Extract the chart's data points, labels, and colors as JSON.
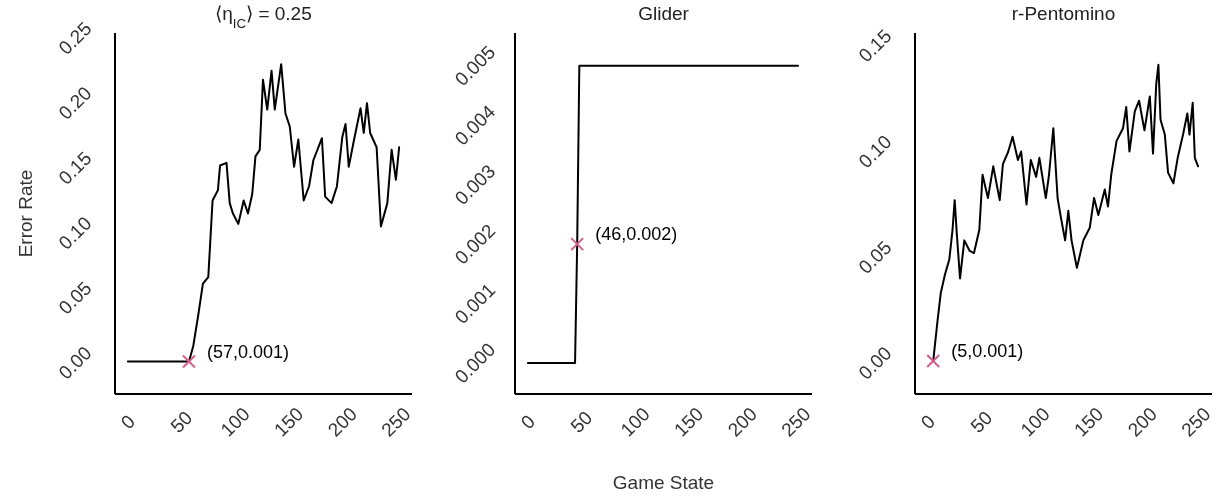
{
  "chart_data": [
    {
      "type": "line",
      "title": "⟨η$_{IC}$⟩ = 0.25",
      "ylabel": "Error Rate",
      "xlim": [
        -12,
        265
      ],
      "xticks": [
        0,
        50,
        100,
        150,
        200,
        250
      ],
      "ylim": [
        -0.024,
        0.254
      ],
      "yticks": [
        {
          "value": 0,
          "label": "0.00"
        },
        {
          "value": 0.05,
          "label": "0.05"
        },
        {
          "value": 0.1,
          "label": "0.10"
        },
        {
          "value": 0.15,
          "label": "0.15"
        },
        {
          "value": 0.2,
          "label": "0.20"
        },
        {
          "value": 0.25,
          "label": "0.25"
        }
      ],
      "series": [
        {
          "color": "#000000",
          "x": [
            0,
            57,
            61,
            65.5,
            70,
            75,
            79,
            84,
            86,
            92,
            95,
            98,
            103,
            108,
            112,
            116,
            119,
            123,
            126,
            130,
            134,
            137,
            143,
            147,
            151,
            155,
            159,
            164,
            169,
            173,
            181,
            184,
            190,
            195,
            200,
            203,
            206,
            211,
            217,
            220,
            223,
            226,
            232,
            236,
            242,
            246,
            250,
            253
          ],
          "values": [
            0.001,
            0.001,
            0.013,
            0.036,
            0.061,
            0.066,
            0.125,
            0.133,
            0.152,
            0.154,
            0.123,
            0.115,
            0.107,
            0.125,
            0.115,
            0.13,
            0.159,
            0.164,
            0.218,
            0.195,
            0.225,
            0.195,
            0.23,
            0.192,
            0.182,
            0.151,
            0.172,
            0.125,
            0.136,
            0.156,
            0.173,
            0.128,
            0.123,
            0.136,
            0.174,
            0.184,
            0.151,
            0.172,
            0.196,
            0.177,
            0.2,
            0.177,
            0.166,
            0.105,
            0.123,
            0.164,
            0.141,
            0.166
          ]
        },
        {
          "type": "scatter",
          "color": "#d0608a",
          "marker": "cross",
          "x": [
            57
          ],
          "values": [
            0.001
          ]
        }
      ],
      "annotations": [
        {
          "text": "(57,0.001)",
          "x": 57,
          "y": 0.001
        }
      ]
    },
    {
      "type": "line",
      "title": "Glider",
      "xlabel": "Game State",
      "xlim": [
        -12,
        265
      ],
      "xticks": [
        0,
        50,
        100,
        150,
        200,
        250
      ],
      "ylim": [
        -0.00052,
        0.00555
      ],
      "yticks": [
        {
          "value": 0,
          "label": "0.000"
        },
        {
          "value": 0.001,
          "label": "0.001"
        },
        {
          "value": 0.002,
          "label": "0.002"
        },
        {
          "value": 0.003,
          "label": "0.003"
        },
        {
          "value": 0.004,
          "label": "0.004"
        },
        {
          "value": 0.005,
          "label": "0.005"
        }
      ],
      "series": [
        {
          "color": "#000000",
          "x": [
            0,
            44,
            46,
            48,
            252
          ],
          "values": [
            0,
            0,
            0.002,
            0.005,
            0.005
          ]
        },
        {
          "type": "scatter",
          "color": "#d0608a",
          "marker": "cross",
          "x": [
            46
          ],
          "values": [
            0.002
          ]
        }
      ],
      "annotations": [
        {
          "text": "(46,0.002)",
          "x": 46,
          "y": 0.002
        }
      ]
    },
    {
      "type": "line",
      "title": "r-Pentomino",
      "xlim": [
        -12,
        265
      ],
      "xticks": [
        0,
        50,
        100,
        150,
        200,
        250
      ],
      "ylim": [
        -0.0146,
        0.156
      ],
      "yticks": [
        {
          "value": 0,
          "label": "0.00"
        },
        {
          "value": 0.05,
          "label": "0.05"
        },
        {
          "value": 0.1,
          "label": "0.10"
        },
        {
          "value": 0.15,
          "label": "0.15"
        }
      ],
      "series": [
        {
          "color": "#000000",
          "x": [
            5,
            9,
            12,
            16,
            20,
            23,
            25,
            27,
            30,
            34,
            39,
            43,
            48,
            51,
            56,
            61,
            67,
            70,
            75,
            79,
            84,
            87,
            92,
            96,
            101,
            104,
            110,
            113,
            117,
            121,
            124,
            128,
            131,
            134,
            139,
            145,
            151,
            155,
            159,
            165,
            168,
            171,
            176,
            182,
            185,
            188,
            193,
            197,
            202,
            207,
            210,
            213,
            215,
            217,
            221,
            224,
            229,
            233,
            238,
            242,
            244,
            247,
            249,
            252
          ],
          "values": [
            0.001,
            0.02,
            0.033,
            0.042,
            0.049,
            0.063,
            0.077,
            0.061,
            0.04,
            0.058,
            0.053,
            0.052,
            0.063,
            0.089,
            0.078,
            0.093,
            0.077,
            0.094,
            0.1,
            0.107,
            0.096,
            0.1,
            0.075,
            0.096,
            0.088,
            0.097,
            0.078,
            0.089,
            0.111,
            0.078,
            0.069,
            0.058,
            0.072,
            0.058,
            0.045,
            0.058,
            0.064,
            0.078,
            0.07,
            0.082,
            0.074,
            0.089,
            0.105,
            0.111,
            0.121,
            0.1,
            0.119,
            0.124,
            0.11,
            0.126,
            0.099,
            0.132,
            0.141,
            0.115,
            0.108,
            0.09,
            0.085,
            0.097,
            0.108,
            0.118,
            0.108,
            0.123,
            0.097,
            0.093
          ]
        },
        {
          "type": "scatter",
          "color": "#d0608a",
          "marker": "cross",
          "x": [
            5
          ],
          "values": [
            0.001
          ]
        }
      ],
      "annotations": [
        {
          "text": "(5,0.001)",
          "x": 5,
          "y": 0.001
        }
      ]
    }
  ]
}
